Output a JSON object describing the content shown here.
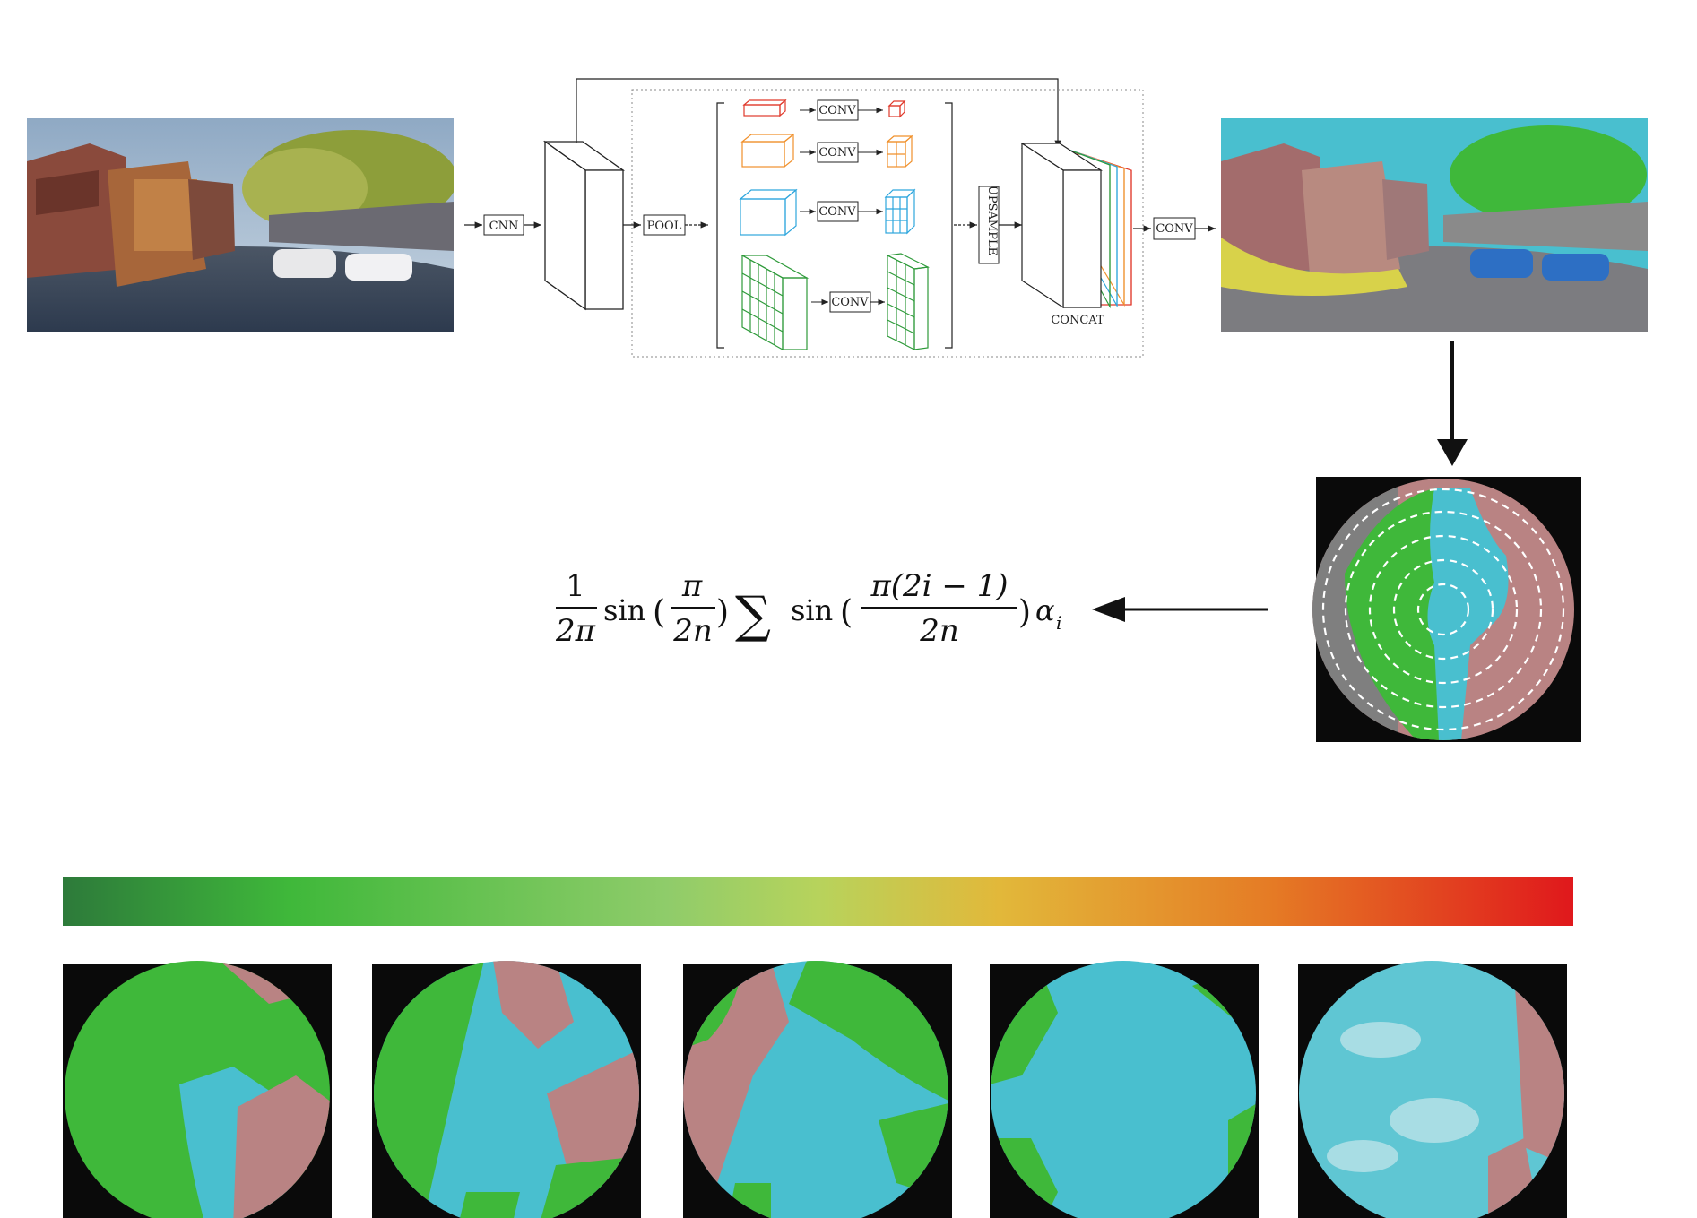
{
  "pipeline": {
    "cnn_label": "CNN",
    "pool_label": "POOL",
    "conv_label": "CONV",
    "upsample_label": "UPSAMPLE",
    "concat_label": "CONCAT",
    "output_conv_label": "CONV"
  },
  "formula": {
    "frac1_num": "1",
    "frac1_den": "2π",
    "sin1": "sin",
    "frac2_num": "π",
    "frac2_den": "2n",
    "sum": "∑",
    "sin2": "sin",
    "frac3_num": "π(2i − 1)",
    "frac3_den": "2n",
    "alpha": "α",
    "alpha_sub": "i"
  },
  "colors": {
    "sky": "#49bfcf",
    "tree": "#3fb83a",
    "building": "#b98383",
    "road": "#7f7f7f",
    "car": "#2d6fc4",
    "sidewalk": "#d8d24a",
    "branch_red": "#e0392b",
    "branch_orange": "#f0902b",
    "branch_blue": "#2ea6dd",
    "branch_green": "#2e9a3a",
    "scale_start": "#2d7a3a",
    "scale_mid": "#b7d35c",
    "scale_end": "#e0181c"
  },
  "scale": {
    "levels": 5
  }
}
